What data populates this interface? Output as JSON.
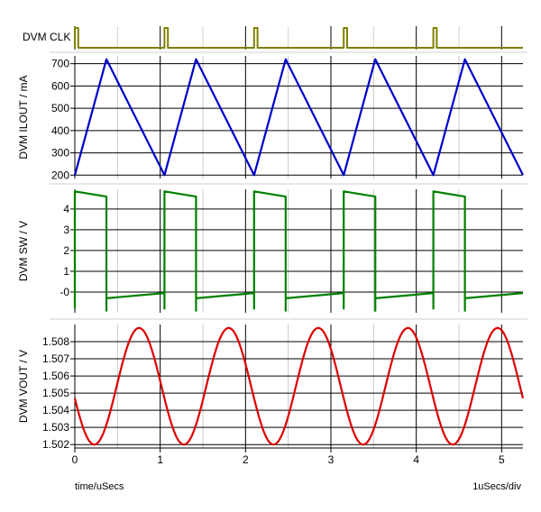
{
  "chart_data": [
    {
      "id": "clk",
      "type": "line",
      "ylabel": "DVM CLK",
      "color": "#808000",
      "x_range": [
        0,
        5.25
      ],
      "pulse_times": [
        0,
        1.05,
        2.1,
        3.15,
        4.2
      ],
      "pulse_width": 0.04
    },
    {
      "id": "ilout",
      "type": "line",
      "ylabel": "DVM ILOUT / mA",
      "color": "#0000cc",
      "ylim": [
        185,
        735
      ],
      "yticks": [
        200,
        300,
        400,
        500,
        600,
        700
      ],
      "x": [
        0,
        0.37,
        1.05,
        1.42,
        2.1,
        2.47,
        3.15,
        3.52,
        4.2,
        4.57,
        5.25
      ],
      "values": [
        200,
        720,
        200,
        720,
        200,
        720,
        200,
        720,
        200,
        720,
        200
      ]
    },
    {
      "id": "sw",
      "type": "line",
      "ylabel": "DVM SW / V",
      "color": "#008000",
      "ylim": [
        -1.0,
        4.95
      ],
      "yticks": [
        -0.0,
        1,
        2,
        3,
        4
      ],
      "ytick_labels": [
        "-0",
        "1",
        "2",
        "3",
        "4"
      ],
      "x": [
        0,
        0,
        0,
        0.37,
        0.37,
        0.37,
        1.05,
        1.05,
        1.05,
        1.42,
        1.42,
        1.42,
        2.1,
        2.1,
        2.1,
        2.47,
        2.47,
        2.47,
        3.15,
        3.15,
        3.15,
        3.52,
        3.52,
        3.52,
        4.2,
        4.2,
        4.2,
        4.57,
        4.57,
        4.57,
        5.25
      ],
      "values": [
        -0.8,
        0.0,
        4.85,
        4.6,
        -0.9,
        -0.3,
        -0.05,
        -0.8,
        4.85,
        4.6,
        -0.9,
        -0.3,
        -0.05,
        -0.8,
        4.85,
        4.6,
        -0.9,
        -0.3,
        -0.05,
        -0.8,
        4.85,
        4.6,
        -0.9,
        -0.3,
        -0.05,
        -0.8,
        4.85,
        4.6,
        -0.9,
        -0.3,
        -0.05
      ]
    },
    {
      "id": "vout",
      "type": "line",
      "ylabel": "DVM VOUT / V",
      "color": "#dd0000",
      "ylim": [
        1.5018,
        1.509
      ],
      "yticks": [
        1.502,
        1.503,
        1.504,
        1.505,
        1.506,
        1.507,
        1.508
      ],
      "ytick_labels": [
        "1.502",
        "1.503",
        "1.504",
        "1.505",
        "1.506",
        "1.507",
        "1.508"
      ],
      "waveform": {
        "kind": "sine",
        "center": 1.5054,
        "amplitude": 0.0034,
        "period": 1.05,
        "phase_deg": 192
      },
      "x_range": [
        0,
        5.25
      ]
    }
  ],
  "x_axis": {
    "ticks": [
      0,
      1,
      2,
      3,
      4,
      5
    ],
    "tick_labels": [
      "0",
      "1",
      "2",
      "3",
      "4",
      "5"
    ],
    "xlim": [
      0,
      5.25
    ],
    "label": "time/uSecs",
    "scale_label": "1uSecs/div"
  }
}
